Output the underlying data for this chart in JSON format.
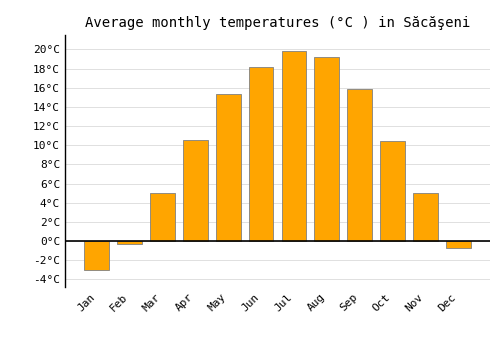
{
  "months": [
    "Jan",
    "Feb",
    "Mar",
    "Apr",
    "May",
    "Jun",
    "Jul",
    "Aug",
    "Sep",
    "Oct",
    "Nov",
    "Dec"
  ],
  "temperatures": [
    -3.0,
    -0.3,
    5.0,
    10.5,
    15.3,
    18.2,
    19.8,
    19.2,
    15.9,
    10.4,
    5.0,
    -0.7
  ],
  "bar_color": "#FFA500",
  "bar_edge_color": "#808080",
  "title": "Average monthly temperatures (°C ) in Săcăşeni",
  "ylabel_ticks": [
    "20°C",
    "18°C",
    "16°C",
    "14°C",
    "12°C",
    "10°C",
    "8°C",
    "6°C",
    "4°C",
    "2°C",
    "0°C",
    "-2°C",
    "-4°C"
  ],
  "ytick_values": [
    20,
    18,
    16,
    14,
    12,
    10,
    8,
    6,
    4,
    2,
    0,
    -2,
    -4
  ],
  "ylim": [
    -4.8,
    21.5
  ],
  "background_color": "#ffffff",
  "grid_color": "#e0e0e0",
  "zero_line_color": "#000000",
  "title_fontsize": 10,
  "tick_fontsize": 8,
  "bar_width": 0.75
}
